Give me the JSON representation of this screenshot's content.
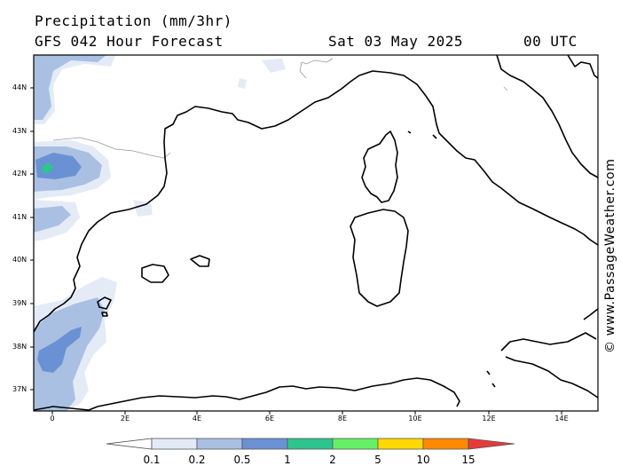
{
  "header": {
    "title": "Precipitation (mm/3hr)",
    "subtitle": "GFS 042 Hour Forecast",
    "date": "Sat 03 May 2025",
    "time": "00 UTC"
  },
  "credit": "© www.PassageWeather.com",
  "axes": {
    "lat_labels": [
      "44N",
      "43N",
      "42N",
      "41N",
      "40N",
      "39N",
      "38N",
      "37N"
    ],
    "lon_labels": [
      "0",
      "2E",
      "4E",
      "6E",
      "8E",
      "10E",
      "12E",
      "14E"
    ]
  },
  "legend": {
    "levels": [
      "0.1",
      "0.2",
      "0.5",
      "1",
      "2",
      "5",
      "10",
      "15"
    ],
    "colors": [
      "#ffffff",
      "#e4ebf7",
      "#a9c0e3",
      "#6a91d3",
      "#2ec48e",
      "#66f066",
      "#ffd800",
      "#ff8a00",
      "#e83a3a"
    ]
  },
  "map": {
    "region": "Western Mediterranean",
    "lat_range": [
      36.5,
      44.8
    ],
    "lon_range": [
      -0.5,
      15.0
    ]
  }
}
